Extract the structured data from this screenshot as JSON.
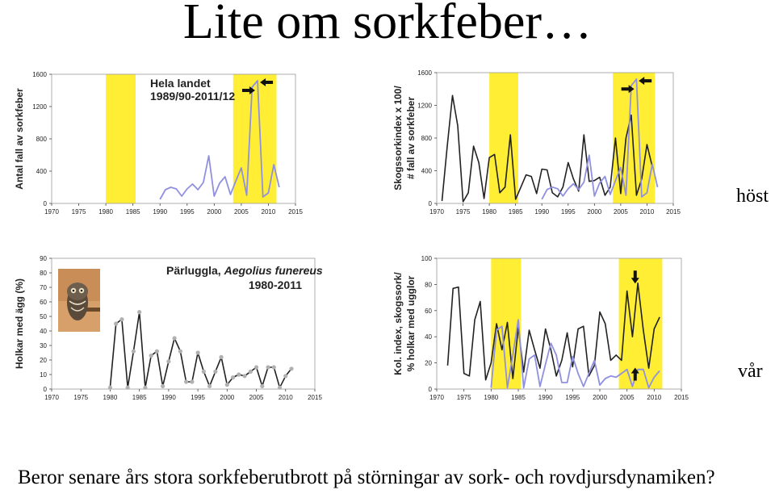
{
  "page": {
    "title": "Lite om sorkfeber…",
    "label_host": "höst",
    "label_var": "vår",
    "footer": "Beror senare års stora sorkfeberutbrott på störningar av sork- och rovdjursdynamiken?"
  },
  "colors": {
    "highlight": "#ffee33",
    "dark": "#222222",
    "light": "#9090e0",
    "dots": "#b0b0b0"
  },
  "chart_data": [
    {
      "id": "tl",
      "type": "line",
      "title": "Hela landet",
      "subtitle": "1989/90-2011/12",
      "ylabel": "Antal fall av sorkfeber",
      "xlim": [
        1970,
        2015
      ],
      "ylim": [
        0,
        1600
      ],
      "xticks": [
        1970,
        1975,
        1980,
        1985,
        1990,
        1995,
        2000,
        2005,
        2010,
        2015
      ],
      "yticks": [
        0,
        400,
        800,
        1200,
        1600
      ],
      "highlights": [
        [
          1980,
          1985.5
        ],
        [
          2003.5,
          2011.5
        ]
      ],
      "arrows": [
        {
          "x": 2006.5,
          "y": 1400,
          "dir": "right"
        },
        {
          "x": 2009.5,
          "y": 1500,
          "dir": "left"
        }
      ],
      "series": [
        {
          "color": "light",
          "x": [
            1990,
            1991,
            1992,
            1993,
            1994,
            1995,
            1996,
            1997,
            1998,
            1999,
            2000,
            2001,
            2002,
            2003,
            2004,
            2005,
            2006,
            2007,
            2008,
            2009,
            2010,
            2011,
            2012
          ],
          "y": [
            50,
            170,
            200,
            180,
            90,
            180,
            240,
            170,
            260,
            590,
            90,
            250,
            330,
            110,
            280,
            440,
            100,
            1440,
            1520,
            80,
            130,
            480,
            200
          ]
        }
      ]
    },
    {
      "id": "tr",
      "type": "line",
      "title": "",
      "ylabel": "Skogssorkindex x 100/ # fall av sorkfeber",
      "xlim": [
        1970,
        2015
      ],
      "ylim": [
        0,
        1600
      ],
      "xticks": [
        1970,
        1975,
        1980,
        1985,
        1990,
        1995,
        2000,
        2005,
        2010,
        2015
      ],
      "yticks": [
        0,
        400,
        800,
        1200,
        1600
      ],
      "highlights": [
        [
          1980,
          1985.5
        ],
        [
          2003.5,
          2011.5
        ]
      ],
      "arrows": [
        {
          "x": 2006.5,
          "y": 1400,
          "dir": "right"
        },
        {
          "x": 2009.5,
          "y": 1500,
          "dir": "left"
        }
      ],
      "series": [
        {
          "color": "dark",
          "x": [
            1971,
            1972,
            1973,
            1974,
            1975,
            1976,
            1977,
            1978,
            1979,
            1980,
            1981,
            1982,
            1983,
            1984,
            1985,
            1986,
            1987,
            1988,
            1989,
            1990,
            1991,
            1992,
            1993,
            1994,
            1995,
            1996,
            1997,
            1998,
            1999,
            2000,
            2001,
            2002,
            2003,
            2004,
            2005,
            2006,
            2007,
            2008,
            2009,
            2010,
            2011
          ],
          "y": [
            30,
            700,
            1320,
            950,
            20,
            130,
            700,
            500,
            60,
            560,
            600,
            130,
            200,
            840,
            50,
            200,
            350,
            330,
            120,
            420,
            410,
            130,
            80,
            200,
            500,
            300,
            150,
            840,
            270,
            280,
            320,
            100,
            200,
            800,
            120,
            800,
            1080,
            100,
            300,
            720,
            450
          ]
        },
        {
          "color": "light",
          "x": [
            1990,
            1991,
            1992,
            1993,
            1994,
            1995,
            1996,
            1997,
            1998,
            1999,
            2000,
            2001,
            2002,
            2003,
            2004,
            2005,
            2006,
            2007,
            2008,
            2009,
            2010,
            2011,
            2012
          ],
          "y": [
            50,
            170,
            200,
            180,
            90,
            180,
            240,
            170,
            260,
            590,
            90,
            250,
            330,
            110,
            280,
            440,
            100,
            1440,
            1520,
            80,
            130,
            480,
            200
          ]
        }
      ]
    },
    {
      "id": "bl",
      "type": "line",
      "title": "Pärluggla, Aegolius funereus",
      "title_plain": "Pärluggla, ",
      "title_italic": "Aegolius funereus",
      "subtitle": "1980-2011",
      "ylabel": "Holkar med ägg (%)",
      "xlim": [
        1970,
        2015
      ],
      "ylim": [
        0,
        90
      ],
      "xticks": [
        1970,
        1975,
        1980,
        1985,
        1990,
        1995,
        2000,
        2005,
        2010,
        2015
      ],
      "yticks": [
        0,
        10,
        20,
        30,
        40,
        50,
        60,
        70,
        80,
        90
      ],
      "highlights": [],
      "markers": true,
      "series": [
        {
          "color": "dark",
          "x": [
            1980,
            1981,
            1982,
            1983,
            1984,
            1985,
            1986,
            1987,
            1988,
            1989,
            1990,
            1991,
            1992,
            1993,
            1994,
            1995,
            1996,
            1997,
            1998,
            1999,
            2000,
            2001,
            2002,
            2003,
            2004,
            2005,
            2006,
            2007,
            2008,
            2009,
            2010,
            2011
          ],
          "y": [
            1,
            45,
            48,
            1,
            26,
            53,
            1,
            23,
            26,
            2,
            19,
            35,
            26,
            5,
            5,
            25,
            12,
            2,
            12,
            22,
            3,
            8,
            10,
            9,
            12,
            15,
            2,
            15,
            15,
            1,
            9,
            14
          ]
        }
      ]
    },
    {
      "id": "br",
      "type": "line",
      "title": "",
      "ylabel": "Kol. index, skogssork/ % holkar med ugglor",
      "xlim": [
        1970,
        2015
      ],
      "ylim": [
        0,
        100
      ],
      "xticks": [
        1970,
        1975,
        1980,
        1985,
        1990,
        1995,
        2000,
        2005,
        2010,
        2015
      ],
      "yticks": [
        0,
        20,
        40,
        60,
        80,
        100
      ],
      "highlights": [
        [
          1980,
          1985.5
        ],
        [
          2003.5,
          2011.5
        ]
      ],
      "arrows": [
        {
          "x": 2006.5,
          "y": 85,
          "dir": "down"
        },
        {
          "x": 2006.5,
          "y": 12,
          "dir": "up"
        }
      ],
      "series": [
        {
          "color": "dark",
          "x": [
            1972,
            1973,
            1974,
            1975,
            1976,
            1977,
            1978,
            1979,
            1980,
            1981,
            1982,
            1983,
            1984,
            1985,
            1986,
            1987,
            1988,
            1989,
            1990,
            1991,
            1992,
            1993,
            1994,
            1995,
            1996,
            1997,
            1998,
            1999,
            2000,
            2001,
            2002,
            2003,
            2004,
            2005,
            2006,
            2007,
            2008,
            2009,
            2010,
            2011
          ],
          "y": [
            18,
            77,
            78,
            12,
            10,
            53,
            67,
            7,
            20,
            50,
            30,
            51,
            8,
            47,
            13,
            45,
            30,
            16,
            46,
            30,
            10,
            22,
            43,
            17,
            46,
            48,
            10,
            18,
            59,
            50,
            22,
            26,
            22,
            75,
            40,
            81,
            45,
            16,
            46,
            55
          ]
        },
        {
          "color": "light",
          "x": [
            1980,
            1981,
            1982,
            1983,
            1984,
            1985,
            1986,
            1987,
            1988,
            1989,
            1990,
            1991,
            1992,
            1993,
            1994,
            1995,
            1996,
            1997,
            1998,
            1999,
            2000,
            2001,
            2002,
            2003,
            2004,
            2005,
            2006,
            2007,
            2008,
            2009,
            2010,
            2011
          ],
          "y": [
            1,
            45,
            48,
            1,
            26,
            53,
            1,
            23,
            26,
            2,
            19,
            35,
            26,
            5,
            5,
            25,
            12,
            2,
            12,
            22,
            3,
            8,
            10,
            9,
            12,
            15,
            2,
            15,
            15,
            1,
            9,
            14
          ]
        }
      ]
    }
  ]
}
